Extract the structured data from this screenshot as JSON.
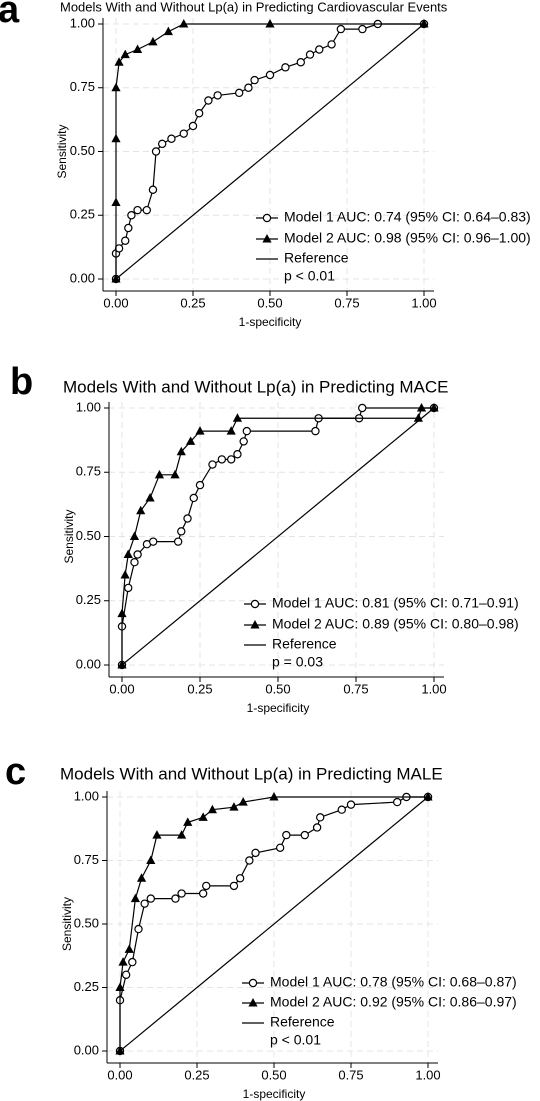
{
  "chart_data": [
    {
      "type": "line",
      "label": "a",
      "title": "Models With and Without Lp(a) in Predicting Cardiovascular Events",
      "xlabel": "1-specificity",
      "ylabel": "Sensitivity",
      "xlim": [
        0,
        1
      ],
      "ylim": [
        0,
        1
      ],
      "grid": true,
      "xticks": [
        {
          "value": 0,
          "label": "0.00"
        },
        {
          "value": 0.25,
          "label": "0.25"
        },
        {
          "value": 0.5,
          "label": "0.50"
        },
        {
          "value": 0.75,
          "label": "0.75"
        },
        {
          "value": 1,
          "label": "1.00"
        }
      ],
      "yticks": [
        {
          "value": 0,
          "label": "0.00"
        },
        {
          "value": 0.25,
          "label": "0.25"
        },
        {
          "value": 0.5,
          "label": "0.50"
        },
        {
          "value": 0.75,
          "label": "0.75"
        },
        {
          "value": 1,
          "label": "1.00"
        }
      ],
      "series": [
        {
          "name": "Model 1 AUC: 0.74 (95% CI: 0.64–0.83)",
          "color": "#000000",
          "marker": "circle",
          "x": [
            0,
            0,
            0.01,
            0.03,
            0.04,
            0.05,
            0.07,
            0.1,
            0.12,
            0.13,
            0.15,
            0.18,
            0.22,
            0.25,
            0.27,
            0.3,
            0.33,
            0.4,
            0.43,
            0.45,
            0.5,
            0.55,
            0.6,
            0.63,
            0.66,
            0.7,
            0.73,
            0.8,
            0.85,
            1
          ],
          "values": [
            0,
            0.1,
            0.12,
            0.15,
            0.2,
            0.25,
            0.27,
            0.27,
            0.35,
            0.5,
            0.53,
            0.55,
            0.57,
            0.6,
            0.65,
            0.7,
            0.72,
            0.73,
            0.75,
            0.78,
            0.8,
            0.83,
            0.85,
            0.88,
            0.9,
            0.92,
            0.98,
            0.98,
            1,
            1
          ]
        },
        {
          "name": "Model 2 AUC: 0.98 (95% CI: 0.96–1.00)",
          "color": "#000000",
          "marker": "triangle",
          "x": [
            0,
            0,
            0,
            0,
            0.01,
            0.03,
            0.07,
            0.12,
            0.17,
            0.22,
            0.5,
            1
          ],
          "values": [
            0,
            0.3,
            0.55,
            0.75,
            0.85,
            0.88,
            0.9,
            0.93,
            0.97,
            1,
            1,
            1
          ]
        },
        {
          "name": "Reference",
          "color": "#000000",
          "marker": "none",
          "x": [
            0,
            1
          ],
          "values": [
            0,
            1
          ]
        }
      ],
      "annotation": "p < 0.01"
    },
    {
      "type": "line",
      "label": "b",
      "title": "Models With and Without Lp(a) in Predicting MACE",
      "xlabel": "1-specificity",
      "ylabel": "Sensitivity",
      "xlim": [
        0,
        1
      ],
      "ylim": [
        0,
        1
      ],
      "grid": true,
      "xticks": [
        {
          "value": 0,
          "label": "0.00"
        },
        {
          "value": 0.25,
          "label": "0.25"
        },
        {
          "value": 0.5,
          "label": "0.50"
        },
        {
          "value": 0.75,
          "label": "0.75"
        },
        {
          "value": 1,
          "label": "1.00"
        }
      ],
      "yticks": [
        {
          "value": 0,
          "label": "0.00"
        },
        {
          "value": 0.25,
          "label": "0.25"
        },
        {
          "value": 0.5,
          "label": "0.50"
        },
        {
          "value": 0.75,
          "label": "0.75"
        },
        {
          "value": 1,
          "label": "1.00"
        }
      ],
      "series": [
        {
          "name": "Model 1 AUC: 0.81 (95% CI: 0.71–0.91)",
          "color": "#000000",
          "marker": "circle",
          "x": [
            0,
            0,
            0.02,
            0.04,
            0.05,
            0.08,
            0.1,
            0.18,
            0.19,
            0.21,
            0.23,
            0.25,
            0.29,
            0.32,
            0.35,
            0.37,
            0.39,
            0.4,
            0.62,
            0.63,
            0.76,
            0.77,
            1
          ],
          "values": [
            0,
            0.15,
            0.3,
            0.4,
            0.43,
            0.47,
            0.48,
            0.48,
            0.52,
            0.57,
            0.65,
            0.7,
            0.78,
            0.8,
            0.8,
            0.82,
            0.87,
            0.91,
            0.91,
            0.96,
            0.96,
            1,
            1
          ]
        },
        {
          "name": "Model 2 AUC: 0.89 (95% CI: 0.80–0.98)",
          "color": "#000000",
          "marker": "triangle",
          "x": [
            0,
            0,
            0.01,
            0.02,
            0.04,
            0.06,
            0.09,
            0.12,
            0.17,
            0.19,
            0.22,
            0.25,
            0.35,
            0.37,
            0.95,
            0.96,
            1
          ],
          "values": [
            0,
            0.2,
            0.35,
            0.43,
            0.5,
            0.6,
            0.65,
            0.74,
            0.74,
            0.83,
            0.87,
            0.91,
            0.91,
            0.96,
            0.96,
            1,
            1
          ]
        },
        {
          "name": "Reference",
          "color": "#000000",
          "marker": "none",
          "x": [
            0,
            1
          ],
          "values": [
            0,
            1
          ]
        }
      ],
      "annotation": "p = 0.03"
    },
    {
      "type": "line",
      "label": "c",
      "title": "Models With and Without Lp(a) in Predicting MALE",
      "xlabel": "1-specificity",
      "ylabel": "Sensitivity",
      "xlim": [
        0,
        1
      ],
      "ylim": [
        0,
        1
      ],
      "grid": true,
      "xticks": [
        {
          "value": 0,
          "label": "0.00"
        },
        {
          "value": 0.25,
          "label": "0.25"
        },
        {
          "value": 0.5,
          "label": "0.50"
        },
        {
          "value": 0.75,
          "label": "0.75"
        },
        {
          "value": 1,
          "label": "1.00"
        }
      ],
      "yticks": [
        {
          "value": 0,
          "label": "0.00"
        },
        {
          "value": 0.25,
          "label": "0.25"
        },
        {
          "value": 0.5,
          "label": "0.50"
        },
        {
          "value": 0.75,
          "label": "0.75"
        },
        {
          "value": 1,
          "label": "1.00"
        }
      ],
      "series": [
        {
          "name": "Model 1 AUC: 0.78 (95% CI: 0.68–0.87)",
          "color": "#000000",
          "marker": "circle",
          "x": [
            0,
            0,
            0.02,
            0.04,
            0.06,
            0.08,
            0.1,
            0.18,
            0.2,
            0.27,
            0.28,
            0.37,
            0.39,
            0.42,
            0.44,
            0.52,
            0.54,
            0.6,
            0.64,
            0.65,
            0.72,
            0.75,
            0.9,
            0.93,
            1
          ],
          "values": [
            0,
            0.2,
            0.3,
            0.35,
            0.48,
            0.58,
            0.6,
            0.6,
            0.62,
            0.62,
            0.65,
            0.65,
            0.68,
            0.75,
            0.78,
            0.8,
            0.85,
            0.85,
            0.88,
            0.92,
            0.95,
            0.97,
            0.98,
            1,
            1
          ]
        },
        {
          "name": "Model 2 AUC:  0.92 (95% CI: 0.86–0.97)",
          "color": "#000000",
          "marker": "triangle",
          "x": [
            0,
            0,
            0.01,
            0.03,
            0.05,
            0.07,
            0.1,
            0.12,
            0.2,
            0.22,
            0.27,
            0.3,
            0.37,
            0.4,
            0.5,
            1
          ],
          "values": [
            0,
            0.25,
            0.35,
            0.4,
            0.6,
            0.68,
            0.75,
            0.85,
            0.85,
            0.9,
            0.92,
            0.95,
            0.96,
            0.98,
            1,
            1
          ]
        },
        {
          "name": "Reference",
          "color": "#000000",
          "marker": "none",
          "x": [
            0,
            1
          ],
          "values": [
            0,
            1
          ]
        }
      ],
      "annotation": "p < 0.01"
    }
  ]
}
